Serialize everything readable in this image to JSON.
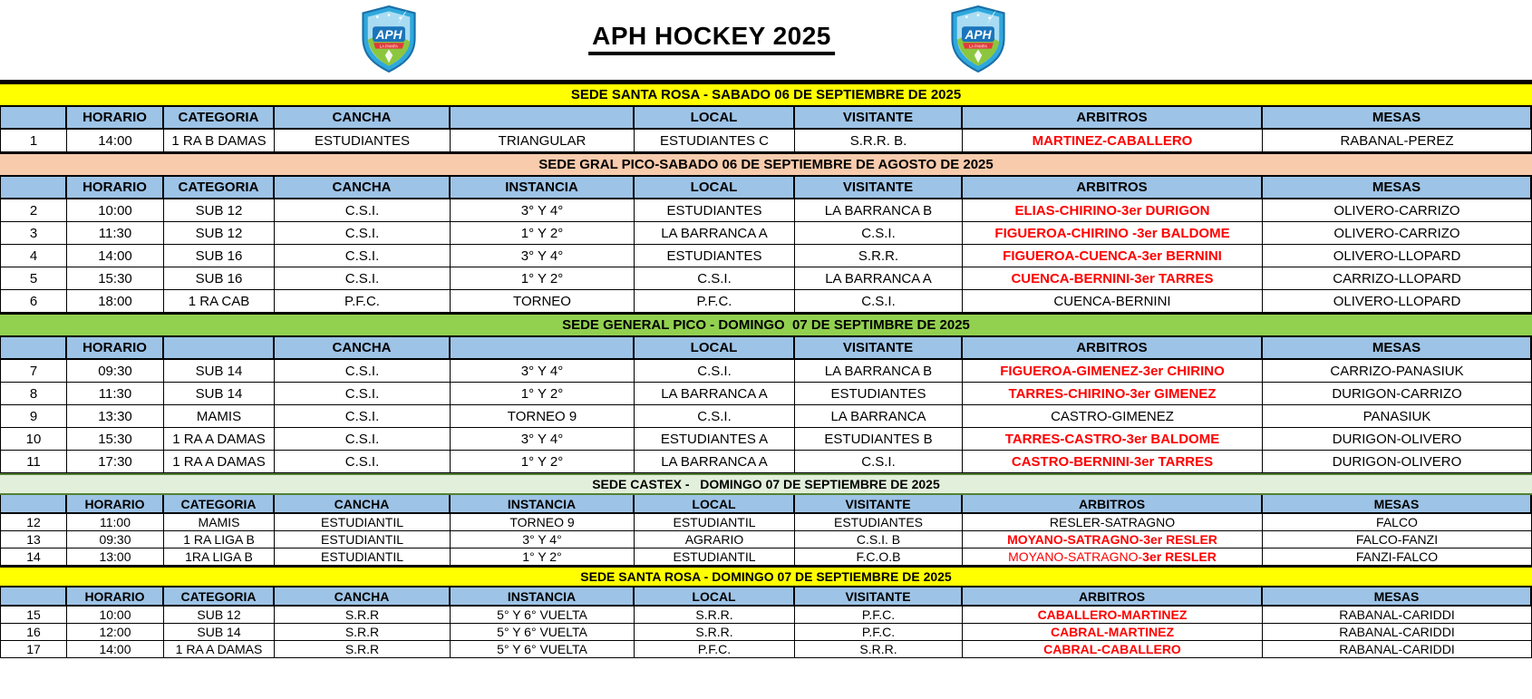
{
  "page": {
    "title": "APH HOCKEY 2025"
  },
  "logo": {
    "text": "APH",
    "ribbon": "LA PAMPA",
    "colors": {
      "shield_blue": "#2FA8DC",
      "shield_edge": "#1A6FA8",
      "sky": "#A9DCF2",
      "grass": "#8CC63F",
      "badge": "#1B75BB",
      "ribbon_red": "#E03A3A"
    }
  },
  "style": {
    "header_bg": "#9DC3E6",
    "red_text": "#FF0000",
    "banner_yellow": "#FFFF00",
    "banner_peach": "#F8CBAD",
    "banner_green": "#92D050",
    "banner_lightgreen": "#E2EFDA",
    "castex_border": "#538135"
  },
  "sections": [
    {
      "banner": {
        "text": "SEDE SANTA ROSA - SABADO 06 DE SEPTIEMBRE DE 2025",
        "bg": "#FFFF00",
        "border": "#000000"
      },
      "headers": [
        "",
        "HORARIO",
        "CATEGORIA",
        "CANCHA",
        "",
        "LOCAL",
        "VISITANTE",
        "ARBITROS",
        "MESAS"
      ],
      "compact": false,
      "rows": [
        {
          "num": "1",
          "horario": "14:00",
          "categoria": "1 RA B DAMAS",
          "cancha": "ESTUDIANTES",
          "instancia": "TRIANGULAR",
          "local": "ESTUDIANTES C",
          "visitante": "S.R.R. B.",
          "arbitros": [
            {
              "text": "MARTINEZ-CABALLERO",
              "style": "red"
            }
          ],
          "mesas": "RABANAL-PEREZ"
        }
      ]
    },
    {
      "banner": {
        "text": "SEDE GRAL PICO-SABADO 06 DE SEPTIEMBRE DE AGOSTO DE 2025",
        "bg": "#F8CBAD",
        "border": "#000000"
      },
      "headers": [
        "",
        "HORARIO",
        "CATEGORIA",
        "CANCHA",
        "INSTANCIA",
        "LOCAL",
        "VISITANTE",
        "ARBITROS",
        "MESAS"
      ],
      "compact": false,
      "rows": [
        {
          "num": "2",
          "horario": "10:00",
          "categoria": "SUB 12",
          "cancha": "C.S.I.",
          "instancia": "3° Y 4°",
          "local": "ESTUDIANTES",
          "visitante": "LA BARRANCA B",
          "arbitros": [
            {
              "text": "ELIAS-CHIRINO-3er DURIGON",
              "style": "red"
            }
          ],
          "mesas": "OLIVERO-CARRIZO"
        },
        {
          "num": "3",
          "horario": "11:30",
          "categoria": "SUB 12",
          "cancha": "C.S.I.",
          "instancia": "1° Y 2°",
          "local": "LA BARRANCA A",
          "visitante": "C.S.I.",
          "arbitros": [
            {
              "text": "FIGUEROA-CHIRINO -3er BALDOME",
              "style": "red"
            }
          ],
          "mesas": "OLIVERO-CARRIZO"
        },
        {
          "num": "4",
          "horario": "14:00",
          "categoria": "SUB 16",
          "cancha": "C.S.I.",
          "instancia": "3° Y 4°",
          "local": "ESTUDIANTES",
          "visitante": "S.R.R.",
          "arbitros": [
            {
              "text": "FIGUEROA-CUENCA-3er BERNINI",
              "style": "red"
            }
          ],
          "mesas": "OLIVERO-LLOPARD"
        },
        {
          "num": "5",
          "horario": "15:30",
          "categoria": "SUB 16",
          "cancha": "C.S.I.",
          "instancia": "1° Y 2°",
          "local": "C.S.I.",
          "visitante": "LA BARRANCA A",
          "arbitros": [
            {
              "text": "CUENCA-BERNINI-3er TARRES",
              "style": "red"
            }
          ],
          "mesas": "CARRIZO-LLOPARD"
        },
        {
          "num": "6",
          "horario": "18:00",
          "categoria": "1 RA CAB",
          "cancha": "P.F.C.",
          "instancia": "TORNEO",
          "local": "P.F.C.",
          "visitante": "C.S.I.",
          "arbitros": [
            {
              "text": "CUENCA-BERNINI",
              "style": "blk"
            }
          ],
          "mesas": "OLIVERO-LLOPARD"
        }
      ]
    },
    {
      "banner": {
        "text": "SEDE GENERAL PICO - DOMINGO  07 DE SEPTIMBRE DE 2025",
        "bg": "#92D050",
        "border": "#000000"
      },
      "headers": [
        "",
        "HORARIO",
        "",
        "CANCHA",
        "",
        "LOCAL",
        "VISITANTE",
        "ARBITROS",
        "MESAS"
      ],
      "compact": false,
      "rows": [
        {
          "num": "7",
          "horario": "09:30",
          "categoria": "SUB 14",
          "cancha": "C.S.I.",
          "instancia": "3° Y 4°",
          "local": "C.S.I.",
          "visitante": "LA BARRANCA B",
          "arbitros": [
            {
              "text": "FIGUEROA-GIMENEZ-3er CHIRINO",
              "style": "red"
            }
          ],
          "mesas": "CARRIZO-PANASIUK"
        },
        {
          "num": "8",
          "horario": "11:30",
          "categoria": "SUB 14",
          "cancha": "C.S.I.",
          "instancia": "1° Y 2°",
          "local": "LA BARRANCA A",
          "visitante": "ESTUDIANTES",
          "arbitros": [
            {
              "text": "TARRES-CHIRINO-3er GIMENEZ",
              "style": "red"
            }
          ],
          "mesas": "DURIGON-CARRIZO"
        },
        {
          "num": "9",
          "horario": "13:30",
          "categoria": "MAMIS",
          "cancha": "C.S.I.",
          "instancia": "TORNEO 9",
          "local": "C.S.I.",
          "visitante": "LA BARRANCA",
          "arbitros": [
            {
              "text": "CASTRO-GIMENEZ",
              "style": "blk"
            }
          ],
          "mesas": "PANASIUK"
        },
        {
          "num": "10",
          "horario": "15:30",
          "categoria": "1 RA A DAMAS",
          "cancha": "C.S.I.",
          "instancia": "3° Y 4°",
          "local": "ESTUDIANTES A",
          "visitante": "ESTUDIANTES B",
          "arbitros": [
            {
              "text": "TARRES-CASTRO-3er BALDOME",
              "style": "red"
            }
          ],
          "mesas": "DURIGON-OLIVERO"
        },
        {
          "num": "11",
          "horario": "17:30",
          "categoria": "1 RA A DAMAS",
          "cancha": "C.S.I.",
          "instancia": "1° Y 2°",
          "local": "LA BARRANCA A",
          "visitante": "C.S.I.",
          "arbitros": [
            {
              "text": "CASTRO-BERNINI-3er TARRES",
              "style": "red"
            }
          ],
          "mesas": "DURIGON-OLIVERO"
        }
      ]
    },
    {
      "banner": {
        "text": "SEDE CASTEX -   DOMINGO 07 DE SEPTIEMBRE DE 2025",
        "bg": "#E2EFDA",
        "border": "#538135"
      },
      "headers": [
        "",
        "HORARIO",
        "CATEGORIA",
        "CANCHA",
        "INSTANCIA",
        "LOCAL",
        "VISITANTE",
        "ARBITROS",
        "MESAS"
      ],
      "compact": true,
      "rows": [
        {
          "num": "12",
          "horario": "11:00",
          "categoria": "MAMIS",
          "cancha": "ESTUDIANTIL",
          "instancia": "TORNEO 9",
          "local": "ESTUDIANTIL",
          "visitante": "ESTUDIANTES",
          "arbitros": [
            {
              "text": "RESLER-SATRAGNO",
              "style": "blk"
            }
          ],
          "mesas": "FALCO"
        },
        {
          "num": "13",
          "horario": "09:30",
          "categoria": "1 RA LIGA B",
          "cancha": "ESTUDIANTIL",
          "instancia": "3° Y 4°",
          "local": "AGRARIO",
          "visitante": "C.S.I. B",
          "arbitros": [
            {
              "text": "MOYANO-SATRAGNO-3er RESLER",
              "style": "red"
            }
          ],
          "mesas": "FALCO-FANZI"
        },
        {
          "num": "14",
          "horario": "13:00",
          "categoria": "1RA LIGA B",
          "cancha": "ESTUDIANTIL",
          "instancia": "1° Y 2°",
          "local": "ESTUDIANTIL",
          "visitante": "F.C.O.B",
          "arbitros": [
            {
              "text": "MOYANO-SATRAGNO-",
              "style": "red-light"
            },
            {
              "text": "3er RESLER",
              "style": "red"
            }
          ],
          "mesas": "FANZI-FALCO"
        }
      ]
    },
    {
      "banner": {
        "text": "SEDE SANTA ROSA - DOMINGO 07 DE SEPTIEMBRE DE 2025",
        "bg": "#FFFF00",
        "border": "#000000"
      },
      "headers": [
        "",
        "HORARIO",
        "CATEGORIA",
        "CANCHA",
        "INSTANCIA",
        "LOCAL",
        "VISITANTE",
        "ARBITROS",
        "MESAS"
      ],
      "compact": true,
      "rows": [
        {
          "num": "15",
          "horario": "10:00",
          "categoria": "SUB 12",
          "cancha": "S.R.R",
          "instancia": "5° Y 6° VUELTA",
          "local": "S.R.R.",
          "visitante": "P.F.C.",
          "arbitros": [
            {
              "text": "CABALLERO-MARTINEZ",
              "style": "red"
            }
          ],
          "mesas": "RABANAL-CARIDDI"
        },
        {
          "num": "16",
          "horario": "12:00",
          "categoria": "SUB 14",
          "cancha": "S.R.R",
          "instancia": "5° Y 6° VUELTA",
          "local": "S.R.R.",
          "visitante": "P.F.C.",
          "arbitros": [
            {
              "text": "CABRAL-MARTINEZ",
              "style": "red"
            }
          ],
          "mesas": "RABANAL-CARIDDI"
        },
        {
          "num": "17",
          "horario": "14:00",
          "categoria": "1 RA A DAMAS",
          "cancha": "S.R.R",
          "instancia": "5° Y 6° VUELTA",
          "local": "P.F.C.",
          "visitante": "S.R.R.",
          "arbitros": [
            {
              "text": "CABRAL-CABALLERO",
              "style": "red"
            }
          ],
          "mesas": "RABANAL-CARIDDI"
        }
      ]
    }
  ]
}
